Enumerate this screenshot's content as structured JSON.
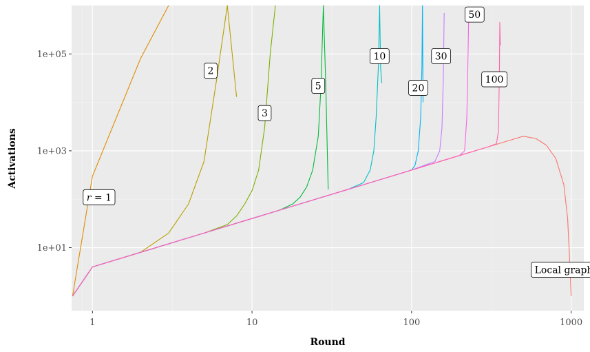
{
  "chart_data": {
    "type": "line",
    "title": "",
    "xlabel": "Round",
    "ylabel": "Activations",
    "x_scale": "log10",
    "y_scale": "log10",
    "xlim": [
      0.74,
      1200
    ],
    "ylim": [
      0.5,
      1000000
    ],
    "x_ticks": [
      {
        "value": 1,
        "label": "1"
      },
      {
        "value": 10,
        "label": "10"
      },
      {
        "value": 100,
        "label": "100"
      },
      {
        "value": 1000,
        "label": "1000"
      }
    ],
    "y_ticks": [
      {
        "value": 10,
        "label": "1e+01"
      },
      {
        "value": 1000,
        "label": "1e+03"
      },
      {
        "value": 100000,
        "label": "1e+05"
      }
    ],
    "grid": true,
    "legend": "none",
    "series": [
      {
        "color": "#F8766D",
        "label_text": "Local graph",
        "label_at": [
          900,
          3.5
        ],
        "x": [
          0.75,
          1,
          2,
          5,
          10,
          20,
          50,
          100,
          200,
          300,
          400,
          500,
          600,
          700,
          800,
          900,
          950,
          980,
          1000
        ],
        "y": [
          1,
          4,
          8,
          20,
          40,
          80,
          200,
          400,
          800,
          1200,
          1600,
          2000,
          1800,
          1300,
          700,
          200,
          40,
          5,
          1
        ]
      },
      {
        "color": "#DE8C00",
        "label_text": "r = 1",
        "label_at": [
          1.1,
          110
        ],
        "x": [
          0.75,
          1,
          2,
          3
        ],
        "y": [
          1,
          300,
          80000,
          1000000
        ]
      },
      {
        "color": "#B79F00",
        "label_text": "2",
        "label_at": [
          5.5,
          45000
        ],
        "x": [
          0.75,
          1,
          2,
          3,
          4,
          5,
          6,
          7,
          8
        ],
        "y": [
          1,
          4,
          8,
          20,
          80,
          600,
          30000,
          1000000,
          13000
        ]
      },
      {
        "color": "#7CAE00",
        "label_text": "3",
        "label_at": [
          12,
          6000
        ],
        "x": [
          0.75,
          1,
          2,
          5,
          7,
          8,
          9,
          10,
          11,
          12,
          13,
          14
        ],
        "y": [
          1,
          4,
          8,
          20,
          30,
          45,
          80,
          150,
          400,
          3000,
          100000,
          1000000
        ]
      },
      {
        "color": "#00BA38",
        "label_text": "5",
        "label_at": [
          26,
          22000
        ],
        "x": [
          0.75,
          1,
          2,
          5,
          10,
          15,
          18,
          20,
          22,
          24,
          26,
          27,
          28,
          29,
          30
        ],
        "y": [
          1,
          4,
          8,
          20,
          40,
          60,
          80,
          110,
          180,
          400,
          2000,
          20000,
          1000000,
          20000,
          160
        ]
      },
      {
        "color": "#00C08B",
        "label_text": "",
        "label_at": null,
        "x": [
          0.75,
          1,
          2,
          5,
          10,
          20,
          30
        ],
        "y": [
          1,
          4,
          8,
          20,
          40,
          80,
          120
        ]
      },
      {
        "color": "#00BFC4",
        "label_text": "10",
        "label_at": [
          63,
          90000
        ],
        "x": [
          0.75,
          1,
          2,
          5,
          10,
          20,
          40,
          50,
          55,
          58,
          60,
          62,
          63,
          64,
          65
        ],
        "y": [
          1,
          4,
          8,
          20,
          40,
          80,
          160,
          220,
          400,
          1000,
          5000,
          60000,
          1000000,
          50000,
          25000
        ]
      },
      {
        "color": "#00B4F0",
        "label_text": "20",
        "label_at": [
          110,
          20000
        ],
        "x": [
          0.75,
          1,
          2,
          5,
          10,
          20,
          50,
          100,
          105,
          110,
          114,
          116,
          117,
          118
        ],
        "y": [
          1,
          4,
          8,
          20,
          40,
          80,
          200,
          400,
          500,
          1000,
          5000,
          50000,
          1000000,
          10000
        ]
      },
      {
        "color": "#619CFF",
        "label_text": "",
        "label_at": null,
        "x": [
          0.75,
          1,
          2,
          5,
          10,
          20,
          50,
          100,
          130
        ],
        "y": [
          1,
          4,
          8,
          20,
          40,
          80,
          200,
          400,
          550
        ]
      },
      {
        "color": "#C77CFF",
        "label_text": "30",
        "label_at": [
          153,
          90000
        ],
        "x": [
          0.75,
          1,
          2,
          5,
          10,
          20,
          50,
          100,
          140,
          150,
          155,
          158,
          160
        ],
        "y": [
          1,
          4,
          8,
          20,
          40,
          80,
          200,
          400,
          600,
          1000,
          3000,
          30000,
          700000
        ]
      },
      {
        "color": "#F564E3",
        "label_text": "50",
        "label_at": [
          248,
          650000
        ],
        "x": [
          0.75,
          1,
          2,
          5,
          10,
          20,
          50,
          100,
          200,
          215,
          222,
          225,
          228
        ],
        "y": [
          1,
          4,
          8,
          20,
          40,
          80,
          200,
          400,
          800,
          1000,
          5000,
          50000,
          600000
        ]
      },
      {
        "color": "#FF64B0",
        "label_text": "100",
        "label_at": [
          330,
          30000
        ],
        "x": [
          0.75,
          1,
          2,
          5,
          10,
          20,
          50,
          100,
          200,
          300,
          340,
          350,
          355,
          357,
          360
        ],
        "y": [
          1,
          4,
          8,
          20,
          40,
          80,
          200,
          400,
          800,
          1200,
          1400,
          2500,
          40000,
          450000,
          150000
        ]
      }
    ]
  }
}
